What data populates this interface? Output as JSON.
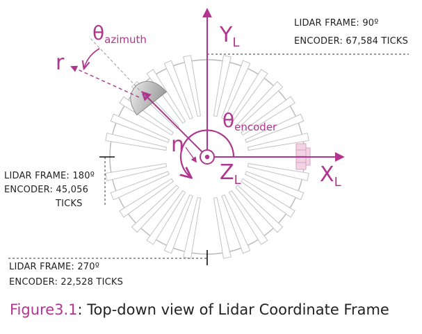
{
  "axes": {
    "y_label": "Y",
    "y_sub": "L",
    "x_label": "X",
    "x_sub": "L",
    "z_label": "Z",
    "z_sub": "L"
  },
  "symbols": {
    "theta_azimuth": "θ",
    "theta_azimuth_sub": "azimuth",
    "theta_encoder": "θ",
    "theta_encoder_sub": "encoder",
    "r": "r",
    "n": "n"
  },
  "annotations": [
    {
      "frame": "LIDAR FRAME: 90º",
      "encoder": "ENCODER: 67,584 TICKS"
    },
    {
      "frame": "LIDAR FRAME: 180º",
      "encoder_line1": "ENCODER: 45,056",
      "encoder_line2": "TICKS"
    },
    {
      "frame": "LIDAR FRAME: 270º",
      "encoder": "ENCODER: 22,528 TICKS"
    }
  ],
  "caption": {
    "figure": "Figure3.1",
    "separator": ":",
    "text": " Top-down view of Lidar Coordinate Frame"
  },
  "colors": {
    "accent": "#b0358e",
    "outline": "#b8b8b8",
    "text": "#222222"
  }
}
